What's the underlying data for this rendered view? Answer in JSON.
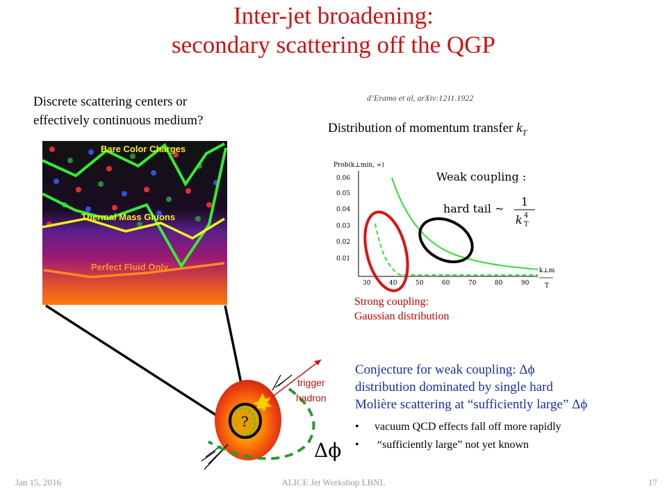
{
  "slide": {
    "title_line1": "Inter-jet broadening:",
    "title_line2": "secondary scattering off the QGP",
    "question_line1": "Discrete scattering centers or",
    "question_line2": "effectively continuous medium?",
    "citation": "d’Eramo et al, arXiv:1211.1922",
    "dist_title_prefix": "Distribution of momentum transfer ",
    "dist_title_var": "k",
    "dist_title_sub": "T",
    "strong_line1": "Strong coupling:",
    "strong_line2": "Gaussian distribution",
    "conj_line1": "Conjecture for weak coupling: Δϕ",
    "conj_line2": "distribution dominated by single hard",
    "conj_line3": "Molière scattering at “sufficiently large” Δϕ",
    "bullet1": "vacuum QCD effects fall off more rapidly",
    "bullet2": " “sufficiently large” not yet known",
    "bullet_char": "•",
    "footer_date": "Jan 15, 2016",
    "footer_center": "ALICE Jet Workshop LBNL",
    "footer_page": "17"
  },
  "medium_image": {
    "label_bare": "Bare Color Charges",
    "label_thermal": "Thermal Mass Gluons",
    "label_fluid": "Perfect Fluid Only"
  },
  "diagram": {
    "trigger_line1": "trigger",
    "trigger_line2": "hadron",
    "question_mark": "?",
    "delta_phi": "Δϕ"
  },
  "plot": {
    "y_label": "Prob(k⊥min, ∞)",
    "y_ticks": [
      "0.06",
      "0.05",
      "0.04",
      "0.03",
      "0.02",
      "0.01"
    ],
    "x_ticks": [
      "30",
      "40",
      "50",
      "60",
      "70",
      "80",
      "90"
    ],
    "x_label_top": "k⊥min",
    "x_label_bottom": "T",
    "weak_label": "Weak coupling :",
    "hard_tail": "hard tail ~",
    "frac_num": "1",
    "frac_den": "k",
    "frac_den_sup": "4",
    "frac_den_sub": "T",
    "colors": {
      "weak": "#33dd33",
      "strong": "#33dd33",
      "ellipse_red": "#e01010",
      "ellipse_black": "#000000"
    }
  }
}
